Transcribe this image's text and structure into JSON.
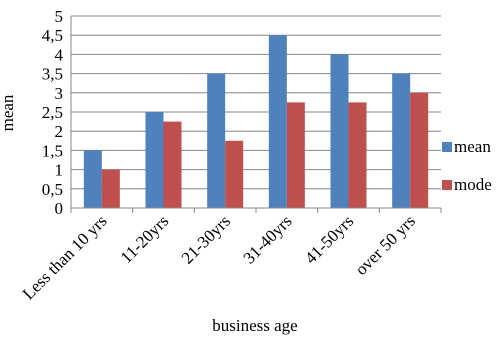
{
  "chart_data": {
    "type": "bar",
    "categories": [
      "Less than 10 yrs",
      "11-20yrs",
      "21-30yrs",
      "31-40yrs",
      "41-50yrs",
      "over 50 yrs"
    ],
    "series": [
      {
        "name": "mean",
        "values": [
          1.5,
          2.5,
          3.5,
          4.5,
          4.0,
          3.5
        ],
        "color": "#4f81bd"
      },
      {
        "name": "mode",
        "values": [
          1.0,
          2.25,
          1.75,
          2.75,
          2.75,
          3.0
        ],
        "color": "#c0504d"
      }
    ],
    "y_ticks": [
      "0",
      "0,5",
      "1",
      "1,5",
      "2",
      "2,5",
      "3",
      "3,5",
      "4",
      "4,5",
      "5"
    ],
    "title": "",
    "xlabel": "business age",
    "ylabel": "mean",
    "ylim": [
      0,
      5
    ],
    "grid": true,
    "legend_position": "right"
  }
}
